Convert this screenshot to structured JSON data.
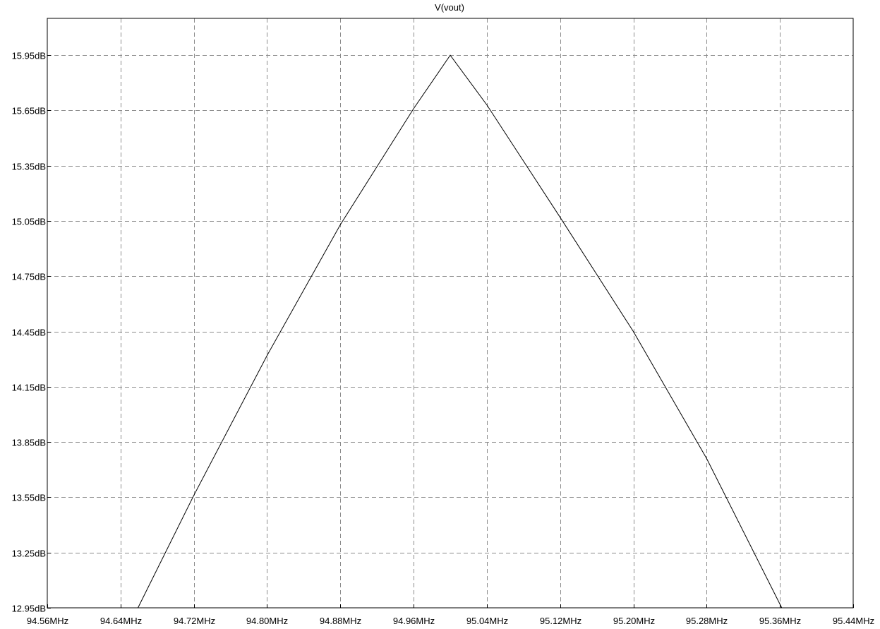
{
  "chart_data": {
    "type": "line",
    "title": "V(vout)",
    "xlabel": "",
    "ylabel": "",
    "xlim": [
      94.56,
      95.44
    ],
    "ylim": [
      12.95,
      16.15
    ],
    "x_unit": "MHz",
    "y_unit": "dB",
    "x_ticks": [
      94.56,
      94.64,
      94.72,
      94.8,
      94.88,
      94.96,
      95.04,
      95.12,
      95.2,
      95.28,
      95.36,
      95.44
    ],
    "x_tick_labels": [
      "94.56MHz",
      "94.64MHz",
      "94.72MHz",
      "94.80MHz",
      "94.88MHz",
      "94.96MHz",
      "95.04MHz",
      "95.12MHz",
      "95.20MHz",
      "95.28MHz",
      "95.36MHz",
      "95.44MHz"
    ],
    "y_ticks": [
      12.95,
      13.25,
      13.55,
      13.85,
      14.15,
      14.45,
      14.75,
      15.05,
      15.35,
      15.65,
      15.95
    ],
    "y_tick_labels": [
      "12.95dB",
      "13.25dB",
      "13.55dB",
      "13.85dB",
      "14.15dB",
      "14.45dB",
      "14.75dB",
      "15.05dB",
      "15.35dB",
      "15.65dB",
      "15.95dB"
    ],
    "grid": true,
    "series": [
      {
        "color": "#000000",
        "x": [
          94.659,
          94.72,
          94.8,
          94.88,
          94.96,
          95.0,
          95.04,
          95.12,
          95.2,
          95.28,
          95.362
        ],
        "y": [
          12.95,
          13.56,
          14.32,
          15.03,
          15.66,
          15.95,
          15.68,
          15.07,
          14.45,
          13.76,
          12.95
        ]
      }
    ]
  },
  "colors": {
    "background": "#ffffff",
    "grid": "#8c8c8c",
    "frame": "#000000"
  }
}
